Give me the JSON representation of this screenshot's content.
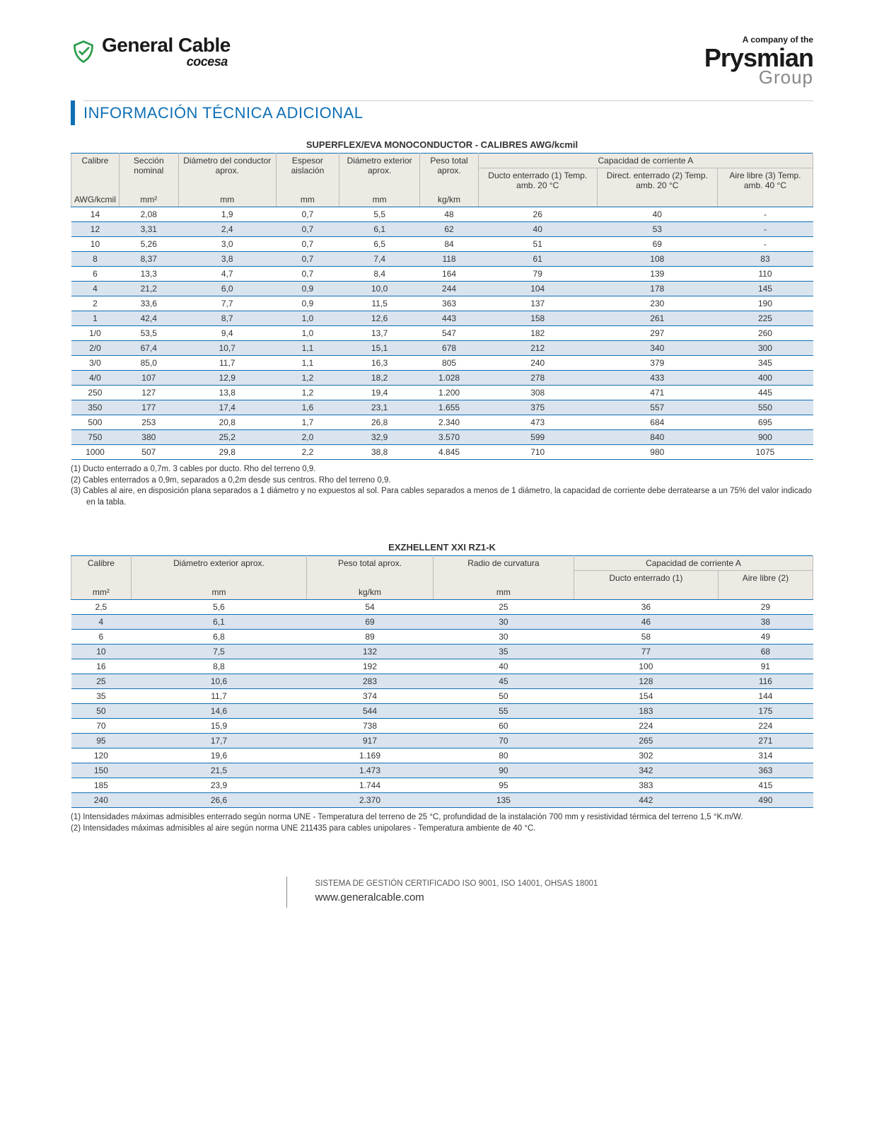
{
  "header": {
    "gc_name": "General Cable",
    "cocesa": "cocesa",
    "company_of": "A company of the",
    "prysmian": "Prysmian",
    "group": "Group"
  },
  "section_title": "INFORMACIÓN TÉCNICA ADICIONAL",
  "table1": {
    "title": "SUPERFLEX/EVA MONOCONDUCTOR - CALIBRES AWG/kcmil",
    "head": {
      "calibre": "Calibre",
      "seccion": "Sección nominal",
      "diam_cond": "Diámetro del conductor aprox.",
      "espesor": "Espesor aislación",
      "diam_ext": "Diámetro exterior aprox.",
      "peso": "Peso total aprox.",
      "cap_group": "Capacidad de corriente A",
      "cap1": "Ducto enterrado (1) Temp. amb. 20 °C",
      "cap2": "Direct. enterrado (2) Temp. amb. 20 °C",
      "cap3": "Aire libre (3) Temp. amb. 40 °C",
      "u_awg": "AWG/kcmil",
      "u_mm2": "mm²",
      "u_mm": "mm",
      "u_kgkm": "kg/km"
    },
    "rows": [
      {
        "c": [
          "14",
          "2,08",
          "1,9",
          "0,7",
          "5,5",
          "48",
          "26",
          "40",
          "-"
        ],
        "stripe": false
      },
      {
        "c": [
          "12",
          "3,31",
          "2,4",
          "0,7",
          "6,1",
          "62",
          "40",
          "53",
          "-"
        ],
        "stripe": true
      },
      {
        "c": [
          "10",
          "5,26",
          "3,0",
          "0,7",
          "6,5",
          "84",
          "51",
          "69",
          "-"
        ],
        "stripe": false
      },
      {
        "c": [
          "8",
          "8,37",
          "3,8",
          "0,7",
          "7,4",
          "118",
          "61",
          "108",
          "83"
        ],
        "stripe": true
      },
      {
        "c": [
          "6",
          "13,3",
          "4,7",
          "0,7",
          "8,4",
          "164",
          "79",
          "139",
          "110"
        ],
        "stripe": false
      },
      {
        "c": [
          "4",
          "21,2",
          "6,0",
          "0,9",
          "10,0",
          "244",
          "104",
          "178",
          "145"
        ],
        "stripe": true
      },
      {
        "c": [
          "2",
          "33,6",
          "7,7",
          "0,9",
          "11,5",
          "363",
          "137",
          "230",
          "190"
        ],
        "stripe": false
      },
      {
        "c": [
          "1",
          "42,4",
          "8,7",
          "1,0",
          "12,6",
          "443",
          "158",
          "261",
          "225"
        ],
        "stripe": true
      },
      {
        "c": [
          "1/0",
          "53,5",
          "9,4",
          "1,0",
          "13,7",
          "547",
          "182",
          "297",
          "260"
        ],
        "stripe": false
      },
      {
        "c": [
          "2/0",
          "67,4",
          "10,7",
          "1,1",
          "15,1",
          "678",
          "212",
          "340",
          "300"
        ],
        "stripe": true
      },
      {
        "c": [
          "3/0",
          "85,0",
          "11,7",
          "1,1",
          "16,3",
          "805",
          "240",
          "379",
          "345"
        ],
        "stripe": false
      },
      {
        "c": [
          "4/0",
          "107",
          "12,9",
          "1,2",
          "18,2",
          "1.028",
          "278",
          "433",
          "400"
        ],
        "stripe": true
      },
      {
        "c": [
          "250",
          "127",
          "13,8",
          "1,2",
          "19,4",
          "1.200",
          "308",
          "471",
          "445"
        ],
        "stripe": false
      },
      {
        "c": [
          "350",
          "177",
          "17,4",
          "1,6",
          "23,1",
          "1.655",
          "375",
          "557",
          "550"
        ],
        "stripe": true
      },
      {
        "c": [
          "500",
          "253",
          "20,8",
          "1,7",
          "26,8",
          "2.340",
          "473",
          "684",
          "695"
        ],
        "stripe": false
      },
      {
        "c": [
          "750",
          "380",
          "25,2",
          "2,0",
          "32,9",
          "3.570",
          "599",
          "840",
          "900"
        ],
        "stripe": true
      },
      {
        "c": [
          "1000",
          "507",
          "29,8",
          "2,2",
          "38,8",
          "4.845",
          "710",
          "980",
          "1075"
        ],
        "stripe": false
      }
    ],
    "notes": [
      "(1) Ducto enterrado a 0,7m. 3 cables por ducto. Rho del terreno 0,9.",
      "(2) Cables enterrados a 0,9m, separados a 0,2m desde sus centros. Rho del terreno 0,9.",
      "(3) Cables al aire, en disposición plana separados a 1 diámetro y no expuestos al sol. Para cables separados a menos de 1 diámetro, la capacidad de corriente debe derratearse a un 75% del valor indicado en la tabla."
    ]
  },
  "table2": {
    "title": "EXZHELLENT XXI RZ1-K",
    "head": {
      "calibre": "Calibre",
      "diam_ext": "Diámetro exterior aprox.",
      "peso": "Peso total aprox.",
      "radio": "Radio de curvatura",
      "cap_group": "Capacidad de corriente A",
      "cap1": "Ducto enterrado (1)",
      "cap2": "Aire libre (2)",
      "u_mm2": "mm²",
      "u_mm": "mm",
      "u_kgkm": "kg/km"
    },
    "rows": [
      {
        "c": [
          "2,5",
          "5,6",
          "54",
          "25",
          "36",
          "29"
        ],
        "stripe": false
      },
      {
        "c": [
          "4",
          "6,1",
          "69",
          "30",
          "46",
          "38"
        ],
        "stripe": true
      },
      {
        "c": [
          "6",
          "6,8",
          "89",
          "30",
          "58",
          "49"
        ],
        "stripe": false
      },
      {
        "c": [
          "10",
          "7,5",
          "132",
          "35",
          "77",
          "68"
        ],
        "stripe": true
      },
      {
        "c": [
          "16",
          "8,8",
          "192",
          "40",
          "100",
          "91"
        ],
        "stripe": false
      },
      {
        "c": [
          "25",
          "10,6",
          "283",
          "45",
          "128",
          "116"
        ],
        "stripe": true
      },
      {
        "c": [
          "35",
          "11,7",
          "374",
          "50",
          "154",
          "144"
        ],
        "stripe": false
      },
      {
        "c": [
          "50",
          "14,6",
          "544",
          "55",
          "183",
          "175"
        ],
        "stripe": true
      },
      {
        "c": [
          "70",
          "15,9",
          "738",
          "60",
          "224",
          "224"
        ],
        "stripe": false
      },
      {
        "c": [
          "95",
          "17,7",
          "917",
          "70",
          "265",
          "271"
        ],
        "stripe": true
      },
      {
        "c": [
          "120",
          "19,6",
          "1.169",
          "80",
          "302",
          "314"
        ],
        "stripe": false
      },
      {
        "c": [
          "150",
          "21,5",
          "1.473",
          "90",
          "342",
          "363"
        ],
        "stripe": true
      },
      {
        "c": [
          "185",
          "23,9",
          "1.744",
          "95",
          "383",
          "415"
        ],
        "stripe": false
      },
      {
        "c": [
          "240",
          "26,6",
          "2.370",
          "135",
          "442",
          "490"
        ],
        "stripe": true
      }
    ],
    "notes": [
      "(1) Intensidades máximas admisibles enterrado según norma UNE - Temperatura del terreno de 25 °C, profundidad de la instalación 700 mm y resistividad térmica del terreno 1,5 °K.m/W.",
      "(2) Intensidades máximas admisibles al aire según norma UNE 211435 para cables unipolares - Temperatura ambiente de 40 °C."
    ]
  },
  "footer": {
    "iso": "SISTEMA DE GESTIÓN CERTIFICADO ISO 9001, ISO 14001, OHSAS 18001",
    "url": "www.generalcable.com"
  }
}
